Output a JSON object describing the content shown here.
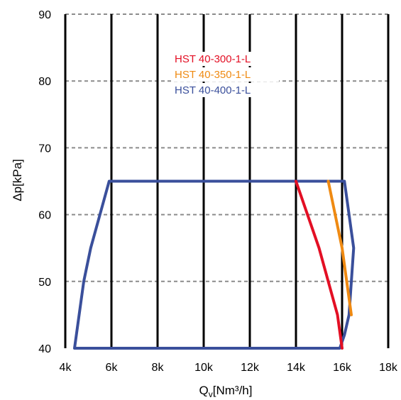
{
  "chart_data": {
    "type": "line",
    "title": "",
    "xlabel": "Q",
    "xlabel_subscript": "v",
    "xlabel_unit": "[Nm³/h]",
    "ylabel": "Δp[kPa]",
    "xlim": [
      4000,
      18000
    ],
    "ylim": [
      40,
      90
    ],
    "x_ticks": [
      4000,
      6000,
      8000,
      10000,
      12000,
      14000,
      16000,
      18000
    ],
    "x_tick_labels": [
      "4k",
      "6k",
      "8k",
      "10k",
      "12k",
      "14k",
      "16k",
      "18k"
    ],
    "y_ticks": [
      40,
      50,
      60,
      70,
      80,
      90
    ],
    "y_tick_labels": [
      "40",
      "50",
      "60",
      "70",
      "80",
      "90"
    ],
    "grid": "vertical solid, horizontal dashed",
    "legend_position": "top-center",
    "series": [
      {
        "name": "HST 40-300-1-L",
        "color": "#e30f24",
        "x": [
          14000,
          15000,
          15800,
          16000
        ],
        "y": [
          65,
          55,
          45,
          40
        ]
      },
      {
        "name": "HST 40-350-1-L",
        "color": "#ef8a12",
        "x": [
          15400,
          16000,
          16400
        ],
        "y": [
          65,
          55,
          45
        ]
      },
      {
        "name": "HST 40-400-1-L",
        "color": "#3a4f9b",
        "x": [
          4400,
          4800,
          5100,
          5500,
          5900,
          16100,
          16500,
          16300,
          16100,
          15900,
          4400
        ],
        "y": [
          40,
          50,
          55,
          60,
          65,
          65,
          55,
          45,
          42,
          40,
          40
        ]
      }
    ]
  }
}
